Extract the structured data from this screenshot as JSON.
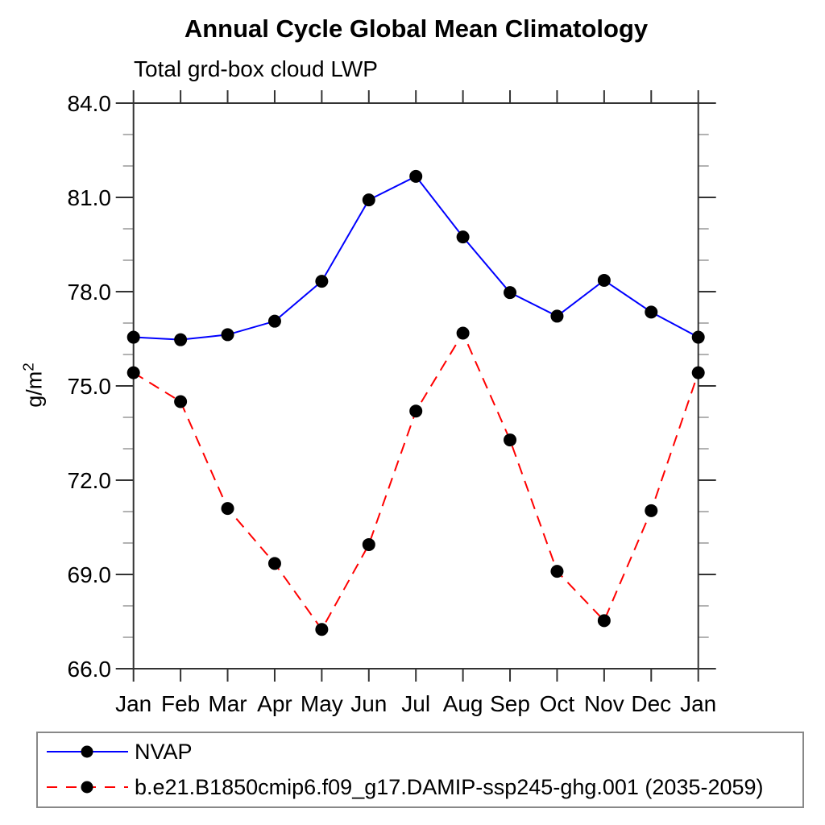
{
  "chart_data": {
    "type": "line",
    "title": "Annual Cycle Global Mean Climatology",
    "subtitle": "Total grd-box cloud LWP",
    "ylabel_base": "g/m",
    "ylabel_sup": "2",
    "x_categories": [
      "Jan",
      "Feb",
      "Mar",
      "Apr",
      "May",
      "Jun",
      "Jul",
      "Aug",
      "Sep",
      "Oct",
      "Nov",
      "Dec",
      "Jan"
    ],
    "ylim": [
      66,
      84
    ],
    "ytick_major_values": [
      66,
      69,
      72,
      75,
      78,
      81,
      84
    ],
    "ytick_major_labels": [
      "66.0",
      "69.0",
      "72.0",
      "75.0",
      "78.0",
      "81.0",
      "84.0"
    ],
    "ytick_minor_step": 1,
    "grid": false,
    "legend_position": "bottom",
    "series": [
      {
        "name": "NVAP",
        "color": "#0000ff",
        "style": "solid",
        "marker": "filled-circle",
        "marker_color": "#000000",
        "values": [
          76.55,
          76.47,
          76.63,
          77.06,
          78.33,
          80.92,
          81.67,
          79.74,
          77.97,
          77.22,
          78.36,
          77.35,
          76.55
        ]
      },
      {
        "name": "b.e21.B1850cmip6.f09_g17.DAMIP-ssp245-ghg.001 (2035-2059)",
        "color": "#ff0000",
        "style": "dashed",
        "marker": "filled-circle",
        "marker_color": "#000000",
        "values": [
          75.42,
          74.5,
          71.1,
          69.35,
          67.25,
          69.95,
          74.2,
          76.68,
          73.28,
          69.1,
          67.53,
          71.03,
          75.42
        ]
      }
    ],
    "colors": {
      "axis": "#333333",
      "minor_tick": "#999999",
      "legend_border": "#888888",
      "text": "#000000"
    }
  }
}
